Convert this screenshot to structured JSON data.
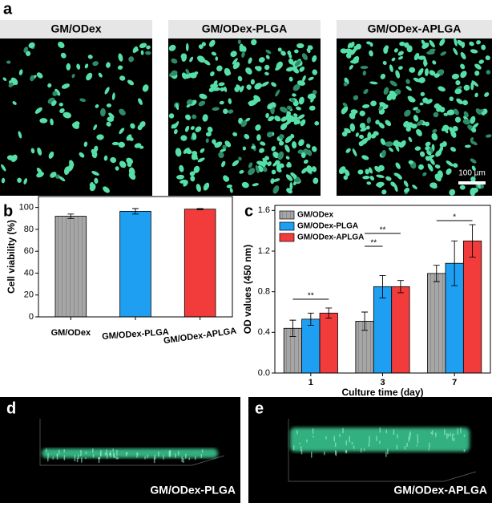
{
  "panel_labels": [
    "a",
    "b",
    "c",
    "d",
    "e"
  ],
  "images": {
    "titles": [
      "GM/ODex",
      "GM/ODex-PLGA",
      "GM/ODex-APLGA"
    ],
    "scale_bar": "100 µm"
  },
  "views": {
    "captions": [
      "GM/ODex-PLGA",
      "GM/ODex-APLGA"
    ]
  },
  "chart_data": [
    {
      "type": "bar",
      "ylabel": "Cell viability (%)",
      "categories": [
        "GM/ODex",
        "GM/ODex-PLGA",
        "GM/ODex-APLGA"
      ],
      "values": [
        92,
        96.5,
        98.5
      ],
      "errors": [
        2,
        2.5,
        0.5
      ],
      "colors": [
        "#a6a6a6",
        "#1e9ff2",
        "#f23c3c"
      ],
      "hatch": [
        true,
        false,
        false
      ],
      "ylim": [
        0,
        110
      ],
      "yticks": [
        0,
        20,
        40,
        60,
        80,
        100
      ]
    },
    {
      "type": "grouped_bar",
      "xlabel": "Culture time (day)",
      "ylabel": "OD values (450 nm)",
      "categories": [
        "1",
        "3",
        "7"
      ],
      "series": [
        {
          "name": "GM/ODex",
          "color": "#a6a6a6",
          "hatch": true,
          "values": [
            0.44,
            0.51,
            0.98
          ],
          "errors": [
            0.08,
            0.09,
            0.08
          ]
        },
        {
          "name": "GM/ODex-PLGA",
          "color": "#1e9ff2",
          "hatch": false,
          "values": [
            0.53,
            0.85,
            1.08
          ],
          "errors": [
            0.06,
            0.11,
            0.22
          ]
        },
        {
          "name": "GM/ODex-APLGA",
          "color": "#f23c3c",
          "hatch": false,
          "values": [
            0.59,
            0.85,
            1.3
          ],
          "errors": [
            0.05,
            0.06,
            0.16
          ]
        }
      ],
      "annotations": [
        "**",
        "**",
        "**",
        "*"
      ],
      "legend": "upper left",
      "ylim": [
        0,
        1.65
      ],
      "yticks": [
        {
          "value": 0,
          "label": "0.0"
        },
        0.4,
        0.8,
        1.2,
        1.6
      ]
    }
  ]
}
